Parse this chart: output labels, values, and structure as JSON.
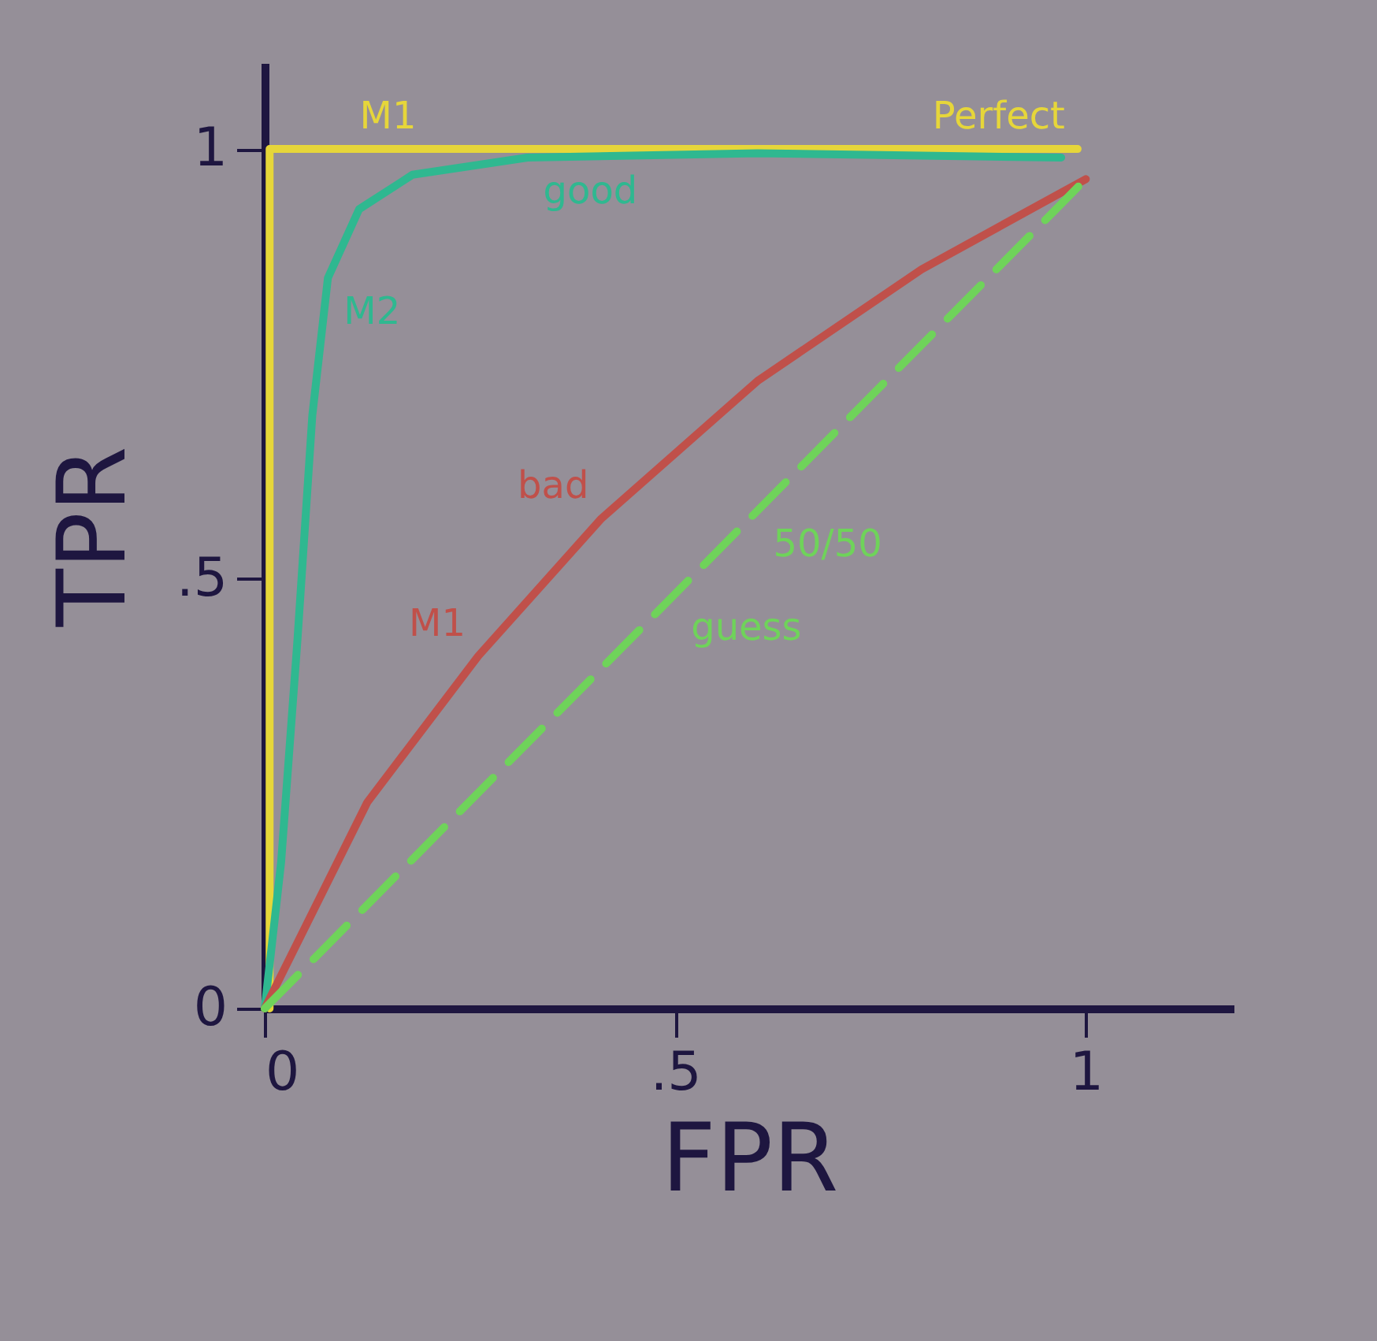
{
  "chart_data": {
    "type": "line",
    "xlabel": "FPR",
    "ylabel": "TPR",
    "xlim": [
      0,
      1.18
    ],
    "ylim": [
      0,
      1.1
    ],
    "xticks": [
      0,
      {
        "value": 0.5,
        "label": ".5"
      },
      1
    ],
    "yticks": [
      0,
      {
        "value": 0.5,
        "label": ".5"
      },
      1
    ],
    "series": [
      {
        "color": "#e6d63a",
        "x": [
          0.006,
          0.006,
          0.99
        ],
        "values": [
          0,
          1,
          1
        ]
      },
      {
        "color": "#2fb890",
        "x": [
          0,
          0.02,
          0.04,
          0.058,
          0.077,
          0.115,
          0.18,
          0.32,
          0.6,
          0.97
        ],
        "values": [
          0,
          0.17,
          0.43,
          0.69,
          0.85,
          0.93,
          0.97,
          0.99,
          0.995,
          0.99
        ]
      },
      {
        "color": "#c0504a",
        "x": [
          0,
          0.125,
          0.26,
          0.41,
          0.6,
          0.8,
          1
        ],
        "values": [
          0,
          0.24,
          0.41,
          0.57,
          0.73,
          0.86,
          0.965
        ]
      },
      {
        "color": "#6fd35a",
        "line_style": "dashed",
        "x": [
          0,
          1
        ],
        "values": [
          0,
          0.965
        ]
      }
    ],
    "annotations": [
      {
        "text": "M1",
        "x": 0.2,
        "y": 1
      },
      {
        "text": "Perfect",
        "x": 0.99,
        "y": 1
      },
      {
        "text": "good",
        "x": 0.32,
        "y": 0.99
      },
      {
        "text": "M2",
        "x": 0.077,
        "y": 0.85
      },
      {
        "text": "bad",
        "x": 0.41,
        "y": 0.57
      },
      {
        "text": "M1",
        "x": 0.26,
        "y": 0.41
      },
      {
        "text": "50/50",
        "x": 0.6,
        "y": 0.579
      },
      {
        "text": "guess",
        "x": 0.5,
        "y": 0.4825
      }
    ]
  }
}
